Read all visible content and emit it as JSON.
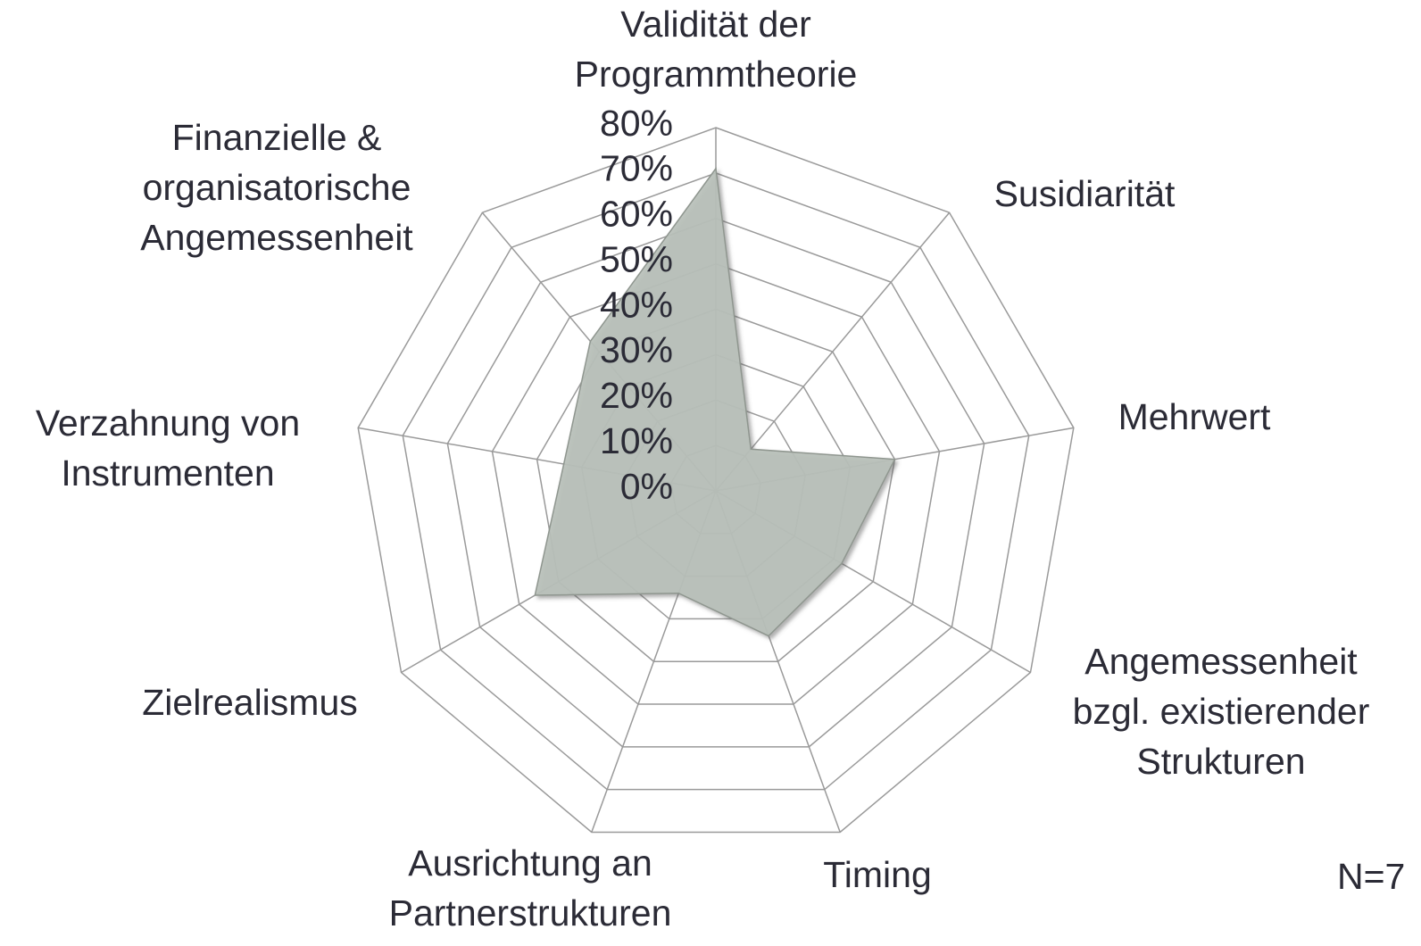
{
  "chart_data": {
    "type": "radar",
    "categories": [
      "Validität der\nProgrammtheorie",
      "Susidiarität",
      "Mehrwert",
      "Angemessenheit\nbzgl. existierender\nStrukturen",
      "Timing",
      "Ausrichtung an\nPartnerstrukturen",
      "Zielrealismus",
      "Verzahnung von\nInstrumenten",
      "Finanzielle &\norganisatorische\nAngemessenheit"
    ],
    "values": [
      71,
      12,
      40,
      32,
      34,
      24,
      46,
      34,
      43
    ],
    "color": "#b9c0ba",
    "ylim": [
      0,
      80
    ],
    "yticks": [
      {
        "value": 0,
        "label": "0%"
      },
      {
        "value": 10,
        "label": "10%"
      },
      {
        "value": 20,
        "label": "20%"
      },
      {
        "value": 30,
        "label": "30%"
      },
      {
        "value": 40,
        "label": "40%"
      },
      {
        "value": 50,
        "label": "50%"
      },
      {
        "value": 60,
        "label": "60%"
      },
      {
        "value": 70,
        "label": "70%"
      },
      {
        "value": 80,
        "label": "80%"
      }
    ],
    "grid": true,
    "annotation": "N=7"
  }
}
